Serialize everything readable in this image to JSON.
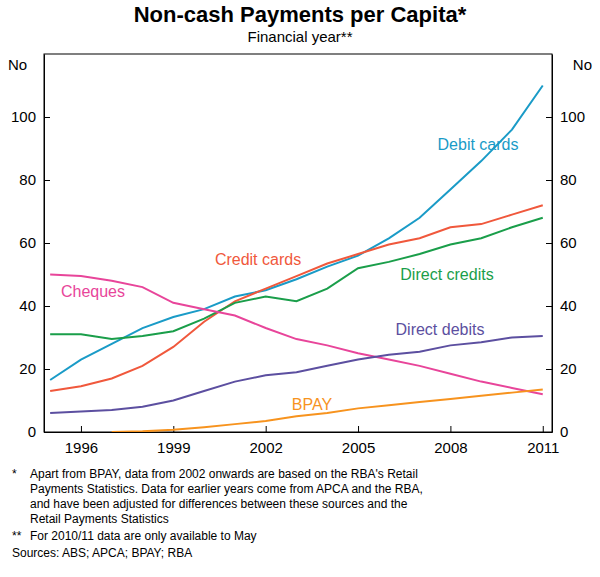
{
  "chart_data": {
    "type": "line",
    "title": "Non-cash Payments per Capita*",
    "subtitle": "Financial year**",
    "y_label": "No",
    "x": [
      1995,
      1996,
      1997,
      1998,
      1999,
      2000,
      2001,
      2002,
      2003,
      2004,
      2005,
      2006,
      2007,
      2008,
      2009,
      2010,
      2011
    ],
    "xlim": [
      1994.8,
      2011.3
    ],
    "xticks": [
      1996,
      1999,
      2002,
      2005,
      2008,
      2011
    ],
    "ylim": [
      0,
      120
    ],
    "yticks": [
      0,
      20,
      40,
      60,
      80,
      100
    ],
    "grid": false,
    "series": [
      {
        "name": "Debit cards",
        "color": "#1a9bc7",
        "values": [
          16.5,
          23,
          28,
          33,
          36.5,
          39,
          43,
          45,
          48.5,
          52.5,
          56,
          61.5,
          68,
          77,
          86,
          96,
          110
        ]
      },
      {
        "name": "Credit cards",
        "color": "#f0583c",
        "values": [
          13,
          14.5,
          17,
          21,
          27,
          35,
          41.5,
          45.5,
          49.5,
          53.5,
          56.5,
          59.5,
          61.5,
          65,
          66,
          69,
          72
        ]
      },
      {
        "name": "Direct credits",
        "color": "#1a9e4a",
        "values": [
          31,
          31,
          29.5,
          30.5,
          32,
          36,
          41,
          43,
          41.5,
          45.5,
          52,
          54,
          56.5,
          59.5,
          61.5,
          65,
          68
        ]
      },
      {
        "name": "Cheques",
        "color": "#e8459a",
        "values": [
          50,
          49.5,
          48,
          46,
          41,
          39,
          37,
          33,
          29.5,
          27.5,
          25,
          23,
          21,
          18.5,
          16,
          14,
          12
        ]
      },
      {
        "name": "Direct debits",
        "color": "#5c4fa0",
        "values": [
          6,
          6.5,
          7,
          8,
          10,
          13,
          16,
          18,
          19,
          21,
          23,
          24.5,
          25.5,
          27.5,
          28.5,
          30,
          30.5
        ]
      },
      {
        "name": "BPAY",
        "color": "#f7931e",
        "values": [
          null,
          null,
          0,
          0.2,
          0.7,
          1.5,
          2.5,
          3.5,
          5,
          6,
          7.5,
          8.5,
          9.5,
          10.5,
          11.5,
          12.5,
          13.5
        ]
      }
    ],
    "notes": [
      {
        "marker": "*",
        "lines": [
          "Apart from BPAY, data from 2002 onwards are based on the RBA's Retail",
          "Payments Statistics. Data for earlier years come from APCA and the RBA,",
          "and have been adjusted for differences between these sources and the",
          "Retail Payments Statistics"
        ]
      },
      {
        "marker": "**",
        "lines": [
          "For 2010/11 data are only available to May"
        ]
      }
    ],
    "sources": "Sources: ABS; APCA; BPAY; RBA"
  }
}
